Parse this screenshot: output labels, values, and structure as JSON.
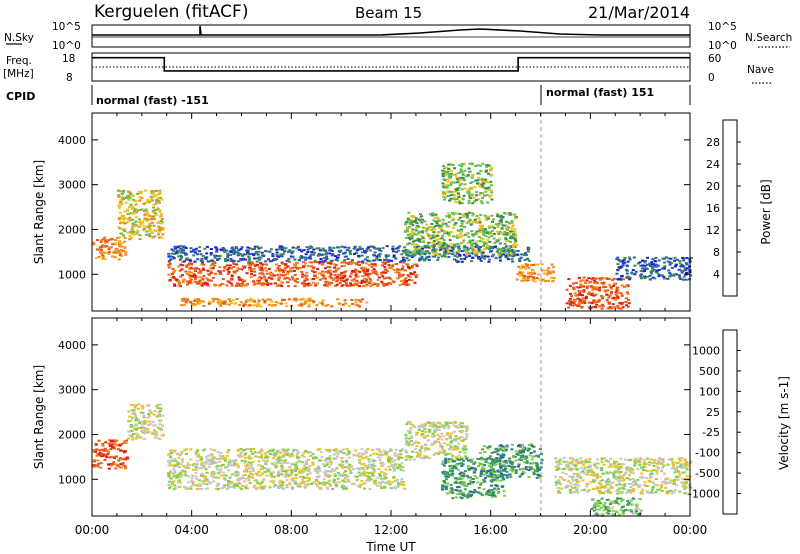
{
  "header": {
    "station": "Kerguelen (fitACF)",
    "beam": "Beam 15",
    "date": "21/Mar/2014"
  },
  "status_panels": {
    "nsky_label": "N.Sky",
    "nsearch_label": "N.Search",
    "freq_label": "Freq.",
    "freq_unit": "[MHz]",
    "nave_label": "Nave",
    "cpid_label": "CPID",
    "left_ticks": {
      "nsky_top": "10^5",
      "nsky_bottom": "10^0",
      "freq_top": "18",
      "freq_bottom": "8"
    },
    "right_ticks": {
      "nsearch_top": "10^5",
      "nsearch_bottom": "10^0",
      "nave_top": "60",
      "nave_bottom": "0"
    },
    "cpid_segments": [
      {
        "label": "normal (fast) -151",
        "start_hour": 0,
        "end_hour": 18
      },
      {
        "label": "normal (fast) 151",
        "start_hour": 18,
        "end_hour": 24
      }
    ],
    "freq_series": [
      {
        "from_hour": 0,
        "to_hour": 2.9,
        "mhz": 17.3
      },
      {
        "from_hour": 2.9,
        "to_hour": 17.1,
        "mhz": 11.8
      },
      {
        "from_hour": 17.1,
        "to_hour": 24,
        "mhz": 17.3
      }
    ],
    "nave_level": 36
  },
  "chart_data": [
    {
      "type": "heatmap",
      "title": "",
      "xlabel": "",
      "ylabel": "Slant Range [km]",
      "xlim": [
        0,
        24
      ],
      "ylim": [
        180,
        4600
      ],
      "x_ticks": [
        "00:00",
        "04:00",
        "08:00",
        "12:00",
        "16:00",
        "20:00",
        "00:00"
      ],
      "y_ticks": [
        1000,
        2000,
        3000,
        4000
      ],
      "colorbar": {
        "label": "Power [dB]",
        "ticks": [
          "4",
          "8",
          "12",
          "16",
          "20",
          "24",
          "28"
        ],
        "colors": [
          "#1f1fd6",
          "#2a5ea8",
          "#3a8a5a",
          "#63c14a",
          "#f0c020",
          "#f28a1a",
          "#ef5518",
          "#dd1a14"
        ]
      },
      "echo_regions": [
        {
          "t0": 0.0,
          "t1": 1.3,
          "r0": 1350,
          "r1": 1850,
          "level": 5
        },
        {
          "t0": 1.0,
          "t1": 2.8,
          "r0": 1800,
          "r1": 2900,
          "level": 4
        },
        {
          "t0": 3.0,
          "t1": 13.0,
          "r0": 750,
          "r1": 1300,
          "level": 6
        },
        {
          "t0": 3.0,
          "t1": 17.5,
          "r0": 1300,
          "r1": 1650,
          "level": 1
        },
        {
          "t0": 12.5,
          "t1": 17.0,
          "r0": 1450,
          "r1": 2400,
          "level": 3
        },
        {
          "t0": 3.5,
          "t1": 11.0,
          "r0": 300,
          "r1": 480,
          "level": 5
        },
        {
          "t0": 17.0,
          "t1": 18.5,
          "r0": 850,
          "r1": 1250,
          "level": 5
        },
        {
          "t0": 19.0,
          "t1": 21.5,
          "r0": 250,
          "r1": 950,
          "level": 6
        },
        {
          "t0": 21.0,
          "t1": 24.0,
          "r0": 900,
          "r1": 1400,
          "level": 1
        },
        {
          "t0": 14.0,
          "t1": 16.0,
          "r0": 2600,
          "r1": 3500,
          "level": 3
        }
      ]
    },
    {
      "type": "heatmap",
      "title": "",
      "xlabel": "Time UT",
      "ylabel": "Slant Range [km]",
      "xlim": [
        0,
        24
      ],
      "ylim": [
        180,
        4600
      ],
      "x_ticks": [
        "00:00",
        "04:00",
        "08:00",
        "12:00",
        "16:00",
        "20:00",
        "00:00"
      ],
      "y_ticks": [
        1000,
        2000,
        3000,
        4000
      ],
      "colorbar": {
        "label": "Velocity [m s-1]",
        "ticks": [
          "1000",
          "500",
          "100",
          "25",
          "-25",
          "-100",
          "-500",
          "-1000"
        ],
        "colors": [
          "#1f3fc0",
          "#2e6e9e",
          "#3c9a5a",
          "#7dd04a",
          "#c6c6c0",
          "#f0c020",
          "#f28a1a",
          "#ef5518",
          "#dd1a14"
        ]
      },
      "echo_regions": [
        {
          "t0": 0.0,
          "t1": 1.4,
          "r0": 1250,
          "r1": 1900,
          "level": 7
        },
        {
          "t0": 1.4,
          "t1": 2.8,
          "r0": 1900,
          "r1": 2700,
          "level": 4
        },
        {
          "t0": 3.0,
          "t1": 12.5,
          "r0": 800,
          "r1": 1700,
          "level": 4
        },
        {
          "t0": 12.5,
          "t1": 15.0,
          "r0": 1450,
          "r1": 2300,
          "level": 4
        },
        {
          "t0": 14.0,
          "t1": 16.5,
          "r0": 600,
          "r1": 1500,
          "level": 2
        },
        {
          "t0": 15.5,
          "t1": 18.0,
          "r0": 1050,
          "r1": 1800,
          "level": 2
        },
        {
          "t0": 18.5,
          "t1": 24.0,
          "r0": 700,
          "r1": 1500,
          "level": 4
        },
        {
          "t0": 20.0,
          "t1": 22.0,
          "r0": 200,
          "r1": 600,
          "level": 3
        }
      ]
    }
  ]
}
